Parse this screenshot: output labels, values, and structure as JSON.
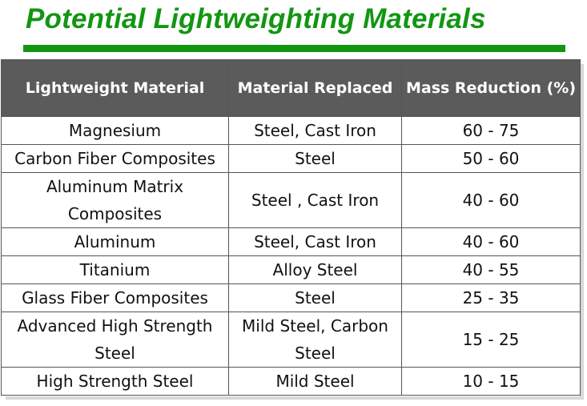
{
  "title": "Potential Lightweighting Materials",
  "colors": {
    "title_green": "#129612",
    "header_bg": "#5b5b5b"
  },
  "table": {
    "headers": [
      "Lightweight Material",
      "Material Replaced",
      "Mass Reduction (%)"
    ],
    "rows": [
      [
        "Magnesium",
        "Steel, Cast Iron",
        "60 - 75"
      ],
      [
        "Carbon Fiber Composites",
        "Steel",
        "50 - 60"
      ],
      [
        "Aluminum Matrix Composites",
        "Steel , Cast Iron",
        "40 - 60"
      ],
      [
        "Aluminum",
        "Steel, Cast Iron",
        "40 - 60"
      ],
      [
        "Titanium",
        "Alloy Steel",
        "40 - 55"
      ],
      [
        "Glass Fiber Composites",
        "Steel",
        "25 - 35"
      ],
      [
        "Advanced High Strength Steel",
        "Mild Steel, Carbon Steel",
        "15 - 25"
      ],
      [
        "High Strength Steel",
        "Mild Steel",
        "10 - 15"
      ]
    ]
  }
}
